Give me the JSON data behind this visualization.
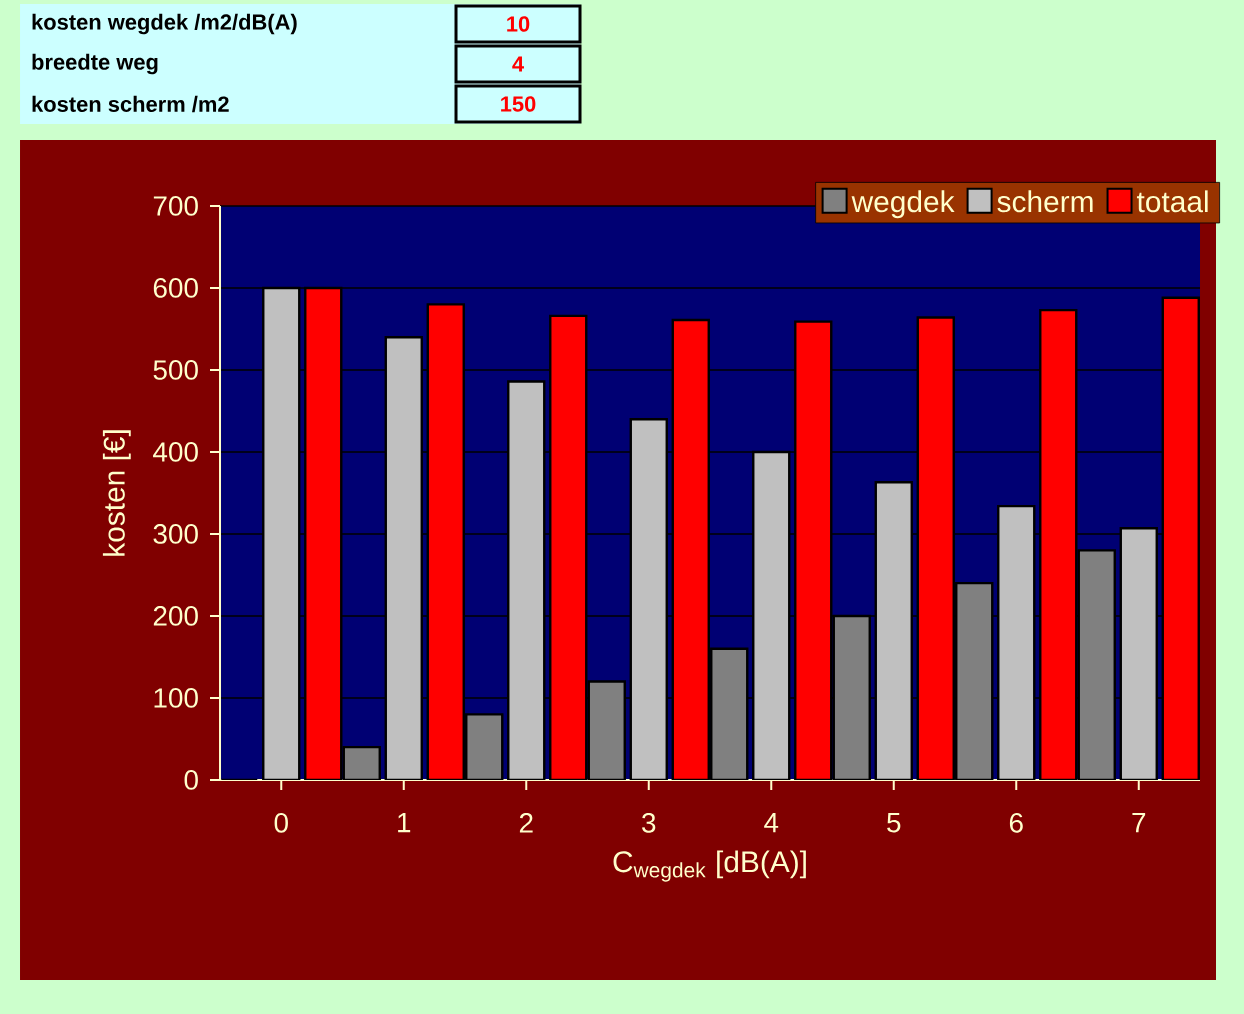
{
  "chart_data": {
    "type": "bar",
    "xlabel": "C$_{wegdek}$ [dB(A)]",
    "ylabel": "kosten [€]",
    "categories": [
      "0",
      "1",
      "2",
      "3",
      "4",
      "5",
      "6",
      "7"
    ],
    "series": [
      {
        "name": "wegdek",
        "color": "#808080",
        "values": [
          0,
          40,
          80,
          120,
          160,
          200,
          240,
          280
        ]
      },
      {
        "name": "scherm",
        "color": "#c0c0c0",
        "values": [
          600,
          540,
          486,
          440,
          400,
          363,
          334,
          307
        ]
      },
      {
        "name": "totaal",
        "color": "#ff0000",
        "values": [
          600,
          580,
          566,
          561,
          559,
          564,
          573,
          588
        ]
      }
    ],
    "ylim": [
      0,
      700
    ],
    "yticks": [
      0,
      100,
      200,
      300,
      400,
      500,
      600,
      700
    ],
    "grid": "y",
    "legend": "top right",
    "annotations": [
      "kosten wegdek /m2/dB(A)",
      "10",
      "breedte weg",
      "4",
      "kosten scherm /m2",
      "150"
    ]
  }
}
